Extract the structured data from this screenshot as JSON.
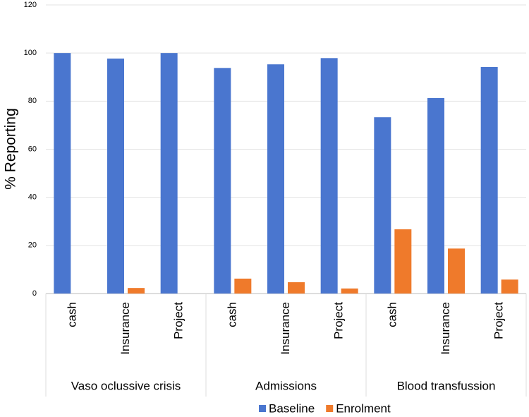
{
  "chart_data": {
    "type": "bar",
    "y_label": "% Reporting",
    "groups": [
      "Vaso oclussive crisis",
      "Admissions",
      "Blood transfussion"
    ],
    "categories": [
      "cash",
      "Insurance",
      "Project",
      "cash",
      "Insurance",
      "Project",
      "cash",
      "Insurance",
      "Project"
    ],
    "series": [
      {
        "name": "Baseline",
        "color": "#4a76cf",
        "values": [
          100,
          97.7,
          100,
          93.8,
          95.3,
          97.9,
          73.3,
          81.3,
          94.2
        ]
      },
      {
        "name": "Enrolment",
        "color": "#ef7a2b",
        "values": [
          0,
          2.3,
          0,
          6.2,
          4.7,
          2.1,
          26.7,
          18.7,
          5.8
        ]
      }
    ],
    "ylim": [
      0,
      120
    ],
    "yticks": [
      0,
      20,
      40,
      60,
      80,
      100,
      120
    ],
    "grid": true,
    "legend": "bottom"
  }
}
